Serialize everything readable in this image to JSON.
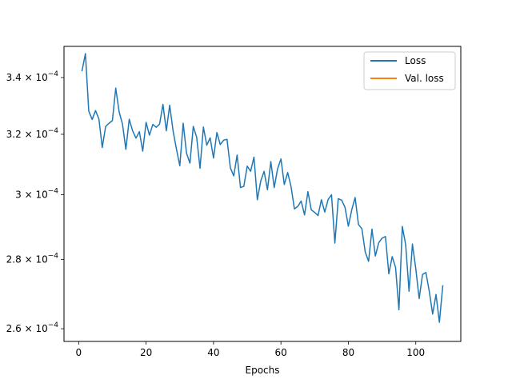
{
  "colors": {
    "loss": "#1f77b4",
    "val_loss": "#ff7f0e",
    "axes": "#000000",
    "background": "#ffffff"
  },
  "chart_data": {
    "type": "line",
    "title": "",
    "xlabel": "Epochs",
    "ylabel": "",
    "xlim": [
      -4.35,
      113.35
    ],
    "ylim": [
      0.0002565,
      0.0003515
    ],
    "yscale": "log",
    "grid": false,
    "legend_position": "top-right",
    "x_ticks": [
      {
        "value": 0,
        "label": "0"
      },
      {
        "value": 20,
        "label": "20"
      },
      {
        "value": 40,
        "label": "40"
      },
      {
        "value": 60,
        "label": "60"
      },
      {
        "value": 80,
        "label": "80"
      },
      {
        "value": 100,
        "label": "100"
      }
    ],
    "y_ticks": [
      {
        "value": 0.00026,
        "mantissa": "2.6",
        "exponent": "−4"
      },
      {
        "value": 0.00028,
        "mantissa": "2.8",
        "exponent": "−4"
      },
      {
        "value": 0.0003,
        "mantissa": "3",
        "exponent": "−4"
      },
      {
        "value": 0.00032,
        "mantissa": "3.2",
        "exponent": "−4"
      },
      {
        "value": 0.00034,
        "mantissa": "3.4",
        "exponent": "−4"
      }
    ],
    "series": [
      {
        "name": "Loss",
        "color": "#1f77b4",
        "x": [
          1,
          2,
          3,
          4,
          5,
          6,
          7,
          8,
          9,
          10,
          11,
          12,
          13,
          14,
          15,
          16,
          17,
          18,
          19,
          20,
          21,
          22,
          23,
          24,
          25,
          26,
          27,
          28,
          29,
          30,
          31,
          32,
          33,
          34,
          35,
          36,
          37,
          38,
          39,
          40,
          41,
          42,
          43,
          44,
          45,
          46,
          47,
          48,
          49,
          50,
          51,
          52,
          53,
          54,
          55,
          56,
          57,
          58,
          59,
          60,
          61,
          62,
          63,
          64,
          65,
          66,
          67,
          68,
          69,
          70,
          71,
          72,
          73,
          74,
          75,
          76,
          77,
          78,
          79,
          80,
          81,
          82,
          83,
          84,
          85,
          86,
          87,
          88,
          89,
          90,
          91,
          92,
          93,
          94,
          95,
          96,
          97,
          98,
          99,
          100,
          101,
          102,
          103,
          104,
          105,
          106,
          107,
          108
        ],
        "y": [
          0.0003425,
          0.0003488,
          0.000328,
          0.0003251,
          0.0003282,
          0.0003253,
          0.0003155,
          0.0003227,
          0.0003238,
          0.0003247,
          0.0003362,
          0.0003278,
          0.0003235,
          0.0003149,
          0.0003252,
          0.0003212,
          0.0003187,
          0.0003209,
          0.0003143,
          0.0003241,
          0.0003197,
          0.0003234,
          0.0003224,
          0.0003235,
          0.0003304,
          0.0003212,
          0.0003301,
          0.0003212,
          0.000315,
          0.0003094,
          0.0003238,
          0.0003136,
          0.0003103,
          0.0003227,
          0.000319,
          0.0003086,
          0.0003225,
          0.0003163,
          0.0003188,
          0.000312,
          0.0003206,
          0.0003165,
          0.000318,
          0.0003183,
          0.0003087,
          0.0003061,
          0.000313,
          0.0003023,
          0.0003027,
          0.0003093,
          0.0003076,
          0.0003123,
          0.0002984,
          0.0003044,
          0.0003076,
          0.0003016,
          0.0003108,
          0.0003023,
          0.0003084,
          0.0003117,
          0.0003033,
          0.0003072,
          0.0003026,
          0.0002955,
          0.0002963,
          0.000298,
          0.0002936,
          0.000301,
          0.0002952,
          0.0002944,
          0.0002934,
          0.0002984,
          0.0002945,
          0.0002985,
          0.0003,
          0.0002849,
          0.0002987,
          0.0002983,
          0.000296,
          0.0002901,
          0.0002952,
          0.0002991,
          0.0002906,
          0.0002893,
          0.0002822,
          0.0002794,
          0.0002892,
          0.000281,
          0.000285,
          0.0002864,
          0.0002869,
          0.0002757,
          0.0002808,
          0.0002776,
          0.0002653,
          0.00029,
          0.0002844,
          0.0002706,
          0.0002846,
          0.0002772,
          0.0002685,
          0.0002755,
          0.0002761,
          0.0002706,
          0.0002641,
          0.0002697,
          0.0002618,
          0.0002722
        ]
      },
      {
        "name": "Val. loss",
        "color": "#ff7f0e",
        "x": [],
        "y": []
      }
    ]
  }
}
